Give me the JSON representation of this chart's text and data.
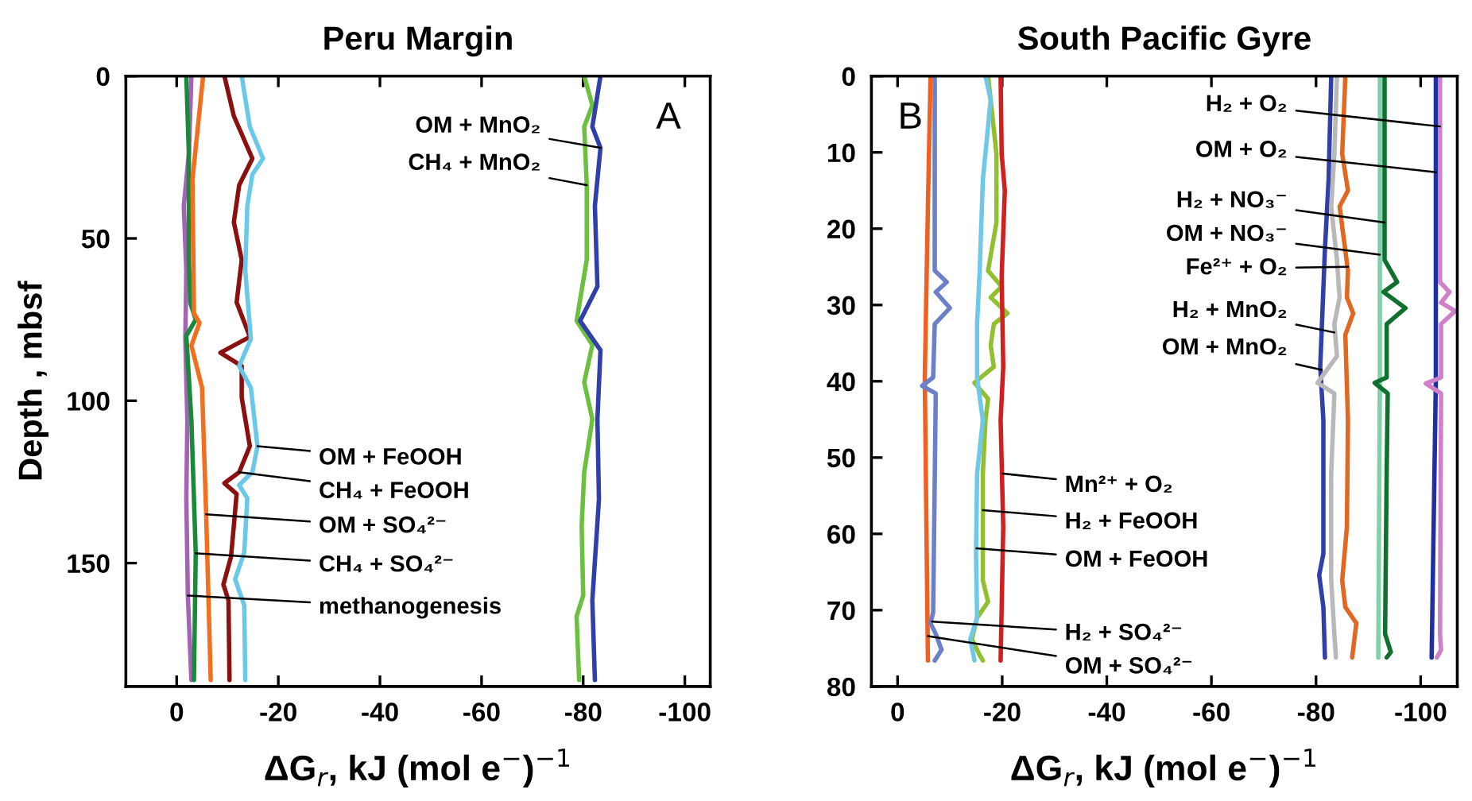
{
  "chart_data": [
    {
      "type": "line",
      "title": "Peru Margin",
      "xlabel": "ΔG$_{r}$, kJ (mol e$^{−}$)$^{−1}$",
      "ylabel": "Depth , mbsf",
      "xlim": [
        10,
        -105
      ],
      "ylim": [
        188,
        0
      ],
      "xticks": [
        0,
        -20,
        -40,
        -60,
        -80,
        -100
      ],
      "yticks": [
        0,
        50,
        100,
        150
      ],
      "series": [
        {
          "color": "#a463b5",
          "x": [
            -2.9,
            -2.4,
            -1.4,
            -1.9,
            -1.7,
            -2.1,
            -1.9,
            -2.2,
            -2.9
          ],
          "values": [
            0,
            24,
            40,
            60,
            81,
            106,
            130,
            160,
            186
          ]
        },
        {
          "color": "#1a8a3a",
          "x": [
            -1.9,
            -2.4,
            -2.4,
            -2.7,
            -3.75,
            -1.9,
            -2.9,
            -3.75,
            -3.4
          ],
          "values": [
            0,
            24,
            57,
            70,
            75,
            80,
            106,
            147,
            186
          ]
        },
        {
          "color": "#f07020",
          "x": [
            -5.2,
            -3.1,
            -3.4,
            -4.5,
            -2.9,
            -5.0,
            -5.8,
            -6.7
          ],
          "values": [
            0,
            32,
            73,
            76,
            83,
            96,
            135,
            186
          ]
        },
        {
          "color": "#8b1010",
          "x": [
            -9.4,
            -11.25,
            -14.9,
            -12.3,
            -11.25,
            -12.8,
            -11.8,
            -14.4,
            -8.6,
            -12.8,
            -12.8,
            -14.4,
            -12.3,
            -9.4,
            -11.8,
            -11.25,
            -10.7,
            -9.2,
            -10.2,
            -10.4
          ],
          "values": [
            0,
            12.3,
            25.4,
            33.6,
            45,
            56.6,
            69.7,
            80.3,
            85.2,
            89.3,
            99,
            114,
            122,
            125.4,
            128.7,
            138.5,
            148,
            156.6,
            161.5,
            186
          ]
        },
        {
          "color": "#6cc8e8",
          "x": [
            -12.8,
            -14.4,
            -17,
            -14.9,
            -13.9,
            -13.5,
            -14.6,
            -12.3,
            -14.6,
            -15.9,
            -14.9,
            -12.3,
            -13.9,
            -13.3,
            -11.5,
            -13.3,
            -13.5
          ],
          "values": [
            0,
            15.6,
            25.4,
            30.3,
            40,
            59.8,
            81,
            89.3,
            96,
            114,
            122,
            126,
            130,
            146.7,
            155,
            163,
            186
          ]
        },
        {
          "color": "#6cc040",
          "x": [
            -80.2,
            -81.8,
            -80.2,
            -80.7,
            -80.7,
            -78.7,
            -81.8,
            -80.2,
            -81.8,
            -80.2,
            -79.7,
            -80,
            -78.7,
            -79.2
          ],
          "values": [
            0,
            9,
            15.6,
            33.6,
            56.6,
            75.4,
            82.8,
            94.3,
            105.7,
            122,
            138.5,
            160,
            166.4,
            186
          ]
        },
        {
          "color": "#3040a8",
          "x": [
            -83.4,
            -81.8,
            -83.4,
            -82.3,
            -82.8,
            -79.4,
            -83.4,
            -82.8,
            -83.1,
            -81.8,
            -82.3
          ],
          "values": [
            0,
            15.6,
            22.1,
            40,
            64.8,
            75.4,
            84.4,
            105.7,
            130.3,
            161.5,
            186
          ]
        }
      ],
      "annotations": [
        "A",
        {
          "text": "OM + MnO₂",
          "x": -83.4,
          "y": 22.1
        },
        {
          "text": "CH₄ + MnO₂",
          "x": -80.7,
          "y": 33.6
        },
        {
          "text": "OM + FeOOH",
          "x": -15.9,
          "y": 114
        },
        {
          "text": "CH₄ + FeOOH",
          "x": -12.3,
          "y": 122
        },
        {
          "text": "OM + SO₄²⁻",
          "x": -5.8,
          "y": 135
        },
        {
          "text": "CH₄ + SO₄²⁻",
          "x": -3.75,
          "y": 147
        },
        {
          "text": "methanogenesis",
          "x": -2.2,
          "y": 160
        }
      ]
    },
    {
      "type": "line",
      "title": "South Pacific Gyre",
      "xlabel": "ΔG$_{r}$, kJ (mol e$^{−}$)$^{−1}$",
      "xlim": [
        5,
        -107
      ],
      "ylim": [
        80,
        0
      ],
      "xticks": [
        0,
        -20,
        -40,
        -60,
        -80,
        -100
      ],
      "yticks": [
        0,
        10,
        20,
        30,
        40,
        50,
        60,
        70,
        80
      ],
      "series": [
        {
          "color": "#f06020",
          "x": [
            -6.3,
            -5.8,
            -5.2,
            -5.8
          ],
          "values": [
            0,
            17.1,
            39.5,
            76.6
          ]
        },
        {
          "color": "#6b80c8",
          "x": [
            -7.1,
            -7.1,
            -9.4,
            -7.3,
            -10,
            -7.1,
            -6.8,
            -4.7,
            -7.3,
            -6.8,
            -6.3,
            -7.3,
            -8.4,
            -7.1
          ],
          "values": [
            0,
            25.5,
            27,
            28.3,
            30.4,
            32.5,
            39.5,
            40.6,
            41.6,
            70.3,
            71.7,
            73.1,
            75.2,
            76.6
          ]
        },
        {
          "color": "#90c030",
          "x": [
            -17.3,
            -17.8,
            -18.9,
            -18.9,
            -17.3,
            -19.9,
            -17.8,
            -21,
            -18.4,
            -17.8,
            -18.4,
            -14.7,
            -17.3,
            -16.8,
            -16.3,
            -16.3,
            -17.3,
            -15.2,
            -14.2,
            -15.7,
            -16.3
          ],
          "values": [
            0,
            3.1,
            10.2,
            19.2,
            25.5,
            27.6,
            29,
            31.1,
            32.5,
            35.3,
            38.1,
            40.2,
            42.3,
            45.1,
            52.1,
            66.1,
            68.9,
            71,
            73.8,
            75.9,
            76.6
          ]
        },
        {
          "color": "#70c8e8",
          "x": [
            -16.8,
            -17.8,
            -16.3,
            -15.7,
            -15.2,
            -15.2,
            -16.3,
            -15.2,
            -15,
            -15.2,
            -13.9,
            -14.7
          ],
          "values": [
            0,
            3.1,
            13.6,
            25.5,
            32.5,
            39.5,
            45.1,
            52.1,
            62.6,
            71,
            73.8,
            76.6
          ]
        },
        {
          "color": "#d02020",
          "x": [
            -19.7,
            -19.9,
            -20.5,
            -19.9,
            -20.2,
            -19.7,
            -20.2,
            -19.7
          ],
          "values": [
            0,
            10.2,
            15,
            26.2,
            38.1,
            45.1,
            59.1,
            76.6
          ]
        },
        {
          "color": "#3040a8",
          "x": [
            -82.9,
            -82.4,
            -81.7,
            -80.8,
            -81.4,
            -81.4,
            -80.6,
            -81.4,
            -81.7
          ],
          "values": [
            0,
            13.6,
            22.7,
            38.1,
            45.1,
            62.6,
            65.4,
            69.6,
            76.2
          ]
        },
        {
          "color": "#b8b8b8",
          "x": [
            -84,
            -83.5,
            -82.9,
            -84,
            -84.5,
            -83.5,
            -84,
            -80.3,
            -83.5,
            -82.9,
            -82.9,
            -83.5,
            -83.8
          ],
          "values": [
            0,
            10.2,
            17.1,
            24.1,
            29,
            32.5,
            36.7,
            40.2,
            41.6,
            52.1,
            66.1,
            73.1,
            76.2
          ]
        },
        {
          "color": "#e06820",
          "x": [
            -85.6,
            -85,
            -86.1,
            -84.5,
            -86.1,
            -85.9,
            -87.1,
            -85.6,
            -86.1,
            -85.9,
            -85,
            -85.6,
            -87.7,
            -86.9
          ],
          "values": [
            0,
            10.2,
            15,
            17.1,
            25.5,
            29,
            31.1,
            33.9,
            45.1,
            59.1,
            66.1,
            69.6,
            71.7,
            76.2
          ]
        },
        {
          "color": "#80d0a8",
          "x": [
            -92.2,
            -92.2,
            -91.9
          ],
          "values": [
            0,
            40,
            76.2
          ]
        },
        {
          "color": "#107030",
          "x": [
            -93.1,
            -93.1,
            -95.5,
            -92.9,
            -97.1,
            -93.5,
            -93.5,
            -91.2,
            -93.7,
            -93.5,
            -93.2,
            -94.3,
            -93.5
          ],
          "values": [
            0,
            24.1,
            27,
            28.3,
            30.4,
            32.5,
            39.5,
            40.2,
            41.6,
            52.1,
            73.1,
            75.5,
            76.2
          ]
        },
        {
          "color": "#2030a0",
          "x": [
            -102.9,
            -102.9,
            -102.1
          ],
          "values": [
            0,
            40,
            76.2
          ]
        },
        {
          "color": "#d080c8",
          "x": [
            -103.7,
            -103.7,
            -105.5,
            -103.9,
            -106.6,
            -103.9,
            -103.9,
            -101,
            -103.9,
            -103.7,
            -103.9,
            -103.1
          ],
          "values": [
            0,
            27,
            28.3,
            29.7,
            30.8,
            32.5,
            39.5,
            40.3,
            41.6,
            73.1,
            75.2,
            76.2
          ]
        }
      ],
      "annotations": [
        "B",
        {
          "text": "H₂ + O₂",
          "x": -103.7,
          "y": 6.6
        },
        {
          "text": "OM + O₂",
          "x": -102.9,
          "y": 12.6
        },
        {
          "text": "H₂ + NO₃⁻",
          "x": -93.1,
          "y": 19.2
        },
        {
          "text": "OM + NO₃⁻",
          "x": -92.2,
          "y": 23.4
        },
        {
          "text": "Fe²⁺ + O₂",
          "x": -86.1,
          "y": 25
        },
        {
          "text": "H₂ + MnO₂",
          "x": -83.5,
          "y": 33.6
        },
        {
          "text": "OM + MnO₂",
          "x": -81.1,
          "y": 38.5
        },
        {
          "text": "Mn²⁺ + O₂",
          "x": -20.1,
          "y": 52.1
        },
        {
          "text": "H₂ + FeOOH",
          "x": -16.3,
          "y": 56.9
        },
        {
          "text": "OM + FeOOH",
          "x": -15.1,
          "y": 61.9
        },
        {
          "text": "H₂ + SO₄²⁻",
          "x": -6.6,
          "y": 71.5
        },
        {
          "text": "OM + SO₄²⁻",
          "x": -5.8,
          "y": 73.4
        }
      ]
    }
  ]
}
